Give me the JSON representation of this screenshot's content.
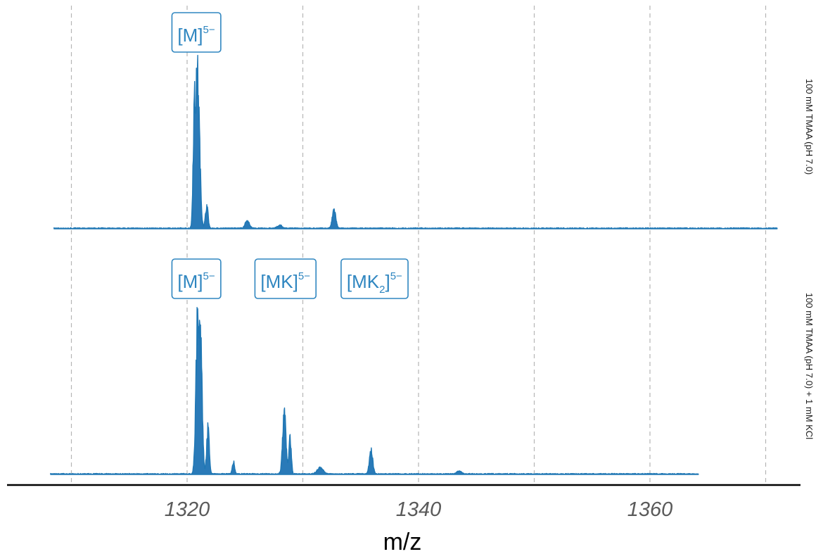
{
  "chart_data": {
    "type": "line",
    "xlabel": "m/z",
    "ylabel": "",
    "xlim": [
      1307,
      1373
    ],
    "xticks": [
      1320,
      1340,
      1360
    ],
    "gridlines_x": [
      1310,
      1320,
      1330,
      1340,
      1350,
      1360,
      1370
    ],
    "grid": "vertical dashed",
    "panels": [
      {
        "name": "100 mM TMAA (pH 7.0)",
        "x_range": [
          1308.5,
          1371
        ],
        "peaks": [
          {
            "x": 1320.9,
            "height": 1.0,
            "width": 0.55
          },
          {
            "x": 1320.6,
            "height": 0.55,
            "width": 0.3
          },
          {
            "x": 1321.7,
            "height": 0.15,
            "width": 0.35
          },
          {
            "x": 1325.2,
            "height": 0.045,
            "width": 0.6
          },
          {
            "x": 1332.7,
            "height": 0.125,
            "width": 0.45
          },
          {
            "x": 1328.0,
            "height": 0.02,
            "width": 0.6
          }
        ],
        "annotations": [
          {
            "x": 1320.8,
            "base": "[M]",
            "sup": "5−"
          }
        ]
      },
      {
        "name": "100 mM TMAA (pH 7.0) + 1 mM KCl",
        "x_range": [
          1308.2,
          1364.2
        ],
        "peaks": [
          {
            "x": 1320.9,
            "height": 1.0,
            "width": 0.45
          },
          {
            "x": 1321.2,
            "height": 0.7,
            "width": 0.4
          },
          {
            "x": 1321.8,
            "height": 0.3,
            "width": 0.35
          },
          {
            "x": 1324.0,
            "height": 0.08,
            "width": 0.3
          },
          {
            "x": 1328.4,
            "height": 0.4,
            "width": 0.45
          },
          {
            "x": 1328.9,
            "height": 0.25,
            "width": 0.3
          },
          {
            "x": 1331.5,
            "height": 0.04,
            "width": 0.8
          },
          {
            "x": 1335.9,
            "height": 0.15,
            "width": 0.45
          },
          {
            "x": 1343.5,
            "height": 0.02,
            "width": 0.6
          }
        ],
        "annotations": [
          {
            "x": 1320.8,
            "base": "[M]",
            "sup": "5−"
          },
          {
            "x": 1328.5,
            "base": "[MK]",
            "sup": "5−"
          },
          {
            "x": 1336.2,
            "base": "[MK",
            "sub": "2",
            "close": "]",
            "sup": "5−"
          }
        ]
      }
    ]
  }
}
